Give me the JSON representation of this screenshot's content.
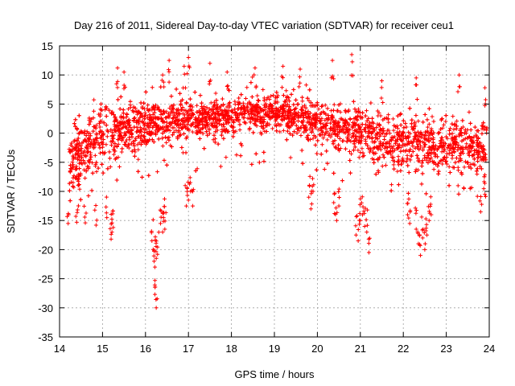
{
  "chart_data": {
    "type": "scatter",
    "title": "Day 216 of 2011, Sidereal Day-to-day VTEC variation (SDTVAR) for receiver ceu1",
    "xlabel": "GPS time / hours",
    "ylabel": "SDTVAR / TECUs",
    "xlim": [
      14,
      24
    ],
    "ylim": [
      -35,
      15
    ],
    "xticks": [
      "14",
      "15",
      "16",
      "17",
      "18",
      "19",
      "20",
      "21",
      "22",
      "23",
      "24"
    ],
    "yticks": [
      "15",
      "10",
      "5",
      "0",
      "-5",
      "-10",
      "-15",
      "-20",
      "-25",
      "-30",
      "-35"
    ],
    "grid": true,
    "marker": "+",
    "series": [
      {
        "name": "ceu1",
        "color": "#ff0000",
        "envelope": [
          {
            "x": 14.25,
            "mean": -5.0,
            "spread": 4.5
          },
          {
            "x": 14.5,
            "mean": -3.0,
            "spread": 5.0
          },
          {
            "x": 14.75,
            "mean": -2.0,
            "spread": 5.0
          },
          {
            "x": 15.0,
            "mean": -0.5,
            "spread": 5.0
          },
          {
            "x": 15.25,
            "mean": 0.5,
            "spread": 5.0
          },
          {
            "x": 15.5,
            "mean": 1.0,
            "spread": 4.5
          },
          {
            "x": 16.0,
            "mean": 1.5,
            "spread": 3.5
          },
          {
            "x": 16.5,
            "mean": 2.0,
            "spread": 3.0
          },
          {
            "x": 17.0,
            "mean": 2.5,
            "spread": 3.0
          },
          {
            "x": 17.5,
            "mean": 2.5,
            "spread": 3.0
          },
          {
            "x": 18.0,
            "mean": 3.0,
            "spread": 3.0
          },
          {
            "x": 18.5,
            "mean": 3.5,
            "spread": 3.0
          },
          {
            "x": 19.0,
            "mean": 3.5,
            "spread": 3.0
          },
          {
            "x": 19.5,
            "mean": 3.0,
            "spread": 3.0
          },
          {
            "x": 20.0,
            "mean": 2.0,
            "spread": 3.0
          },
          {
            "x": 20.5,
            "mean": 1.0,
            "spread": 3.5
          },
          {
            "x": 21.0,
            "mean": 0.0,
            "spread": 3.5
          },
          {
            "x": 21.5,
            "mean": -1.0,
            "spread": 4.0
          },
          {
            "x": 22.0,
            "mean": -1.5,
            "spread": 4.0
          },
          {
            "x": 22.5,
            "mean": -1.5,
            "spread": 4.0
          },
          {
            "x": 23.0,
            "mean": -2.0,
            "spread": 4.0
          },
          {
            "x": 23.5,
            "mean": -2.0,
            "spread": 4.0
          },
          {
            "x": 23.9,
            "mean": -2.5,
            "spread": 4.0
          }
        ],
        "spikes": [
          {
            "x": 14.2,
            "y": -15.5
          },
          {
            "x": 14.4,
            "y": -15.3
          },
          {
            "x": 14.6,
            "y": -15.4
          },
          {
            "x": 14.85,
            "y": -15.8
          },
          {
            "x": 15.1,
            "y": -14.5
          },
          {
            "x": 15.2,
            "y": -18.2
          },
          {
            "x": 15.22,
            "y": -17.0
          },
          {
            "x": 15.25,
            "y": -16.2
          },
          {
            "x": 16.15,
            "y": -18.5
          },
          {
            "x": 16.2,
            "y": -22.0
          },
          {
            "x": 16.22,
            "y": -23.0
          },
          {
            "x": 16.25,
            "y": -21.5
          },
          {
            "x": 16.28,
            "y": -20.8
          },
          {
            "x": 16.22,
            "y": -27.7
          },
          {
            "x": 16.25,
            "y": -30.0
          },
          {
            "x": 16.35,
            "y": -15.5
          },
          {
            "x": 16.4,
            "y": -17.0
          },
          {
            "x": 16.42,
            "y": -14.5
          },
          {
            "x": 16.45,
            "y": -16.5
          },
          {
            "x": 16.95,
            "y": -12.5
          },
          {
            "x": 17.0,
            "y": -11.5
          },
          {
            "x": 17.1,
            "y": -12.5
          },
          {
            "x": 17.05,
            "y": -10.0
          },
          {
            "x": 19.8,
            "y": -11.0
          },
          {
            "x": 19.85,
            "y": -13.0
          },
          {
            "x": 19.9,
            "y": -10.0
          },
          {
            "x": 20.4,
            "y": -13.8
          },
          {
            "x": 20.45,
            "y": -15.0
          },
          {
            "x": 20.5,
            "y": -12.5
          },
          {
            "x": 20.9,
            "y": -17.5
          },
          {
            "x": 20.95,
            "y": -18.5
          },
          {
            "x": 21.0,
            "y": -15.0
          },
          {
            "x": 21.05,
            "y": -14.0
          },
          {
            "x": 21.1,
            "y": -16.0
          },
          {
            "x": 21.15,
            "y": -17.0
          },
          {
            "x": 21.2,
            "y": -20.5
          },
          {
            "x": 22.1,
            "y": -14.0
          },
          {
            "x": 22.15,
            "y": -15.5
          },
          {
            "x": 22.3,
            "y": -16.5
          },
          {
            "x": 22.35,
            "y": -19.0
          },
          {
            "x": 22.4,
            "y": -21.0
          },
          {
            "x": 22.45,
            "y": -18.0
          },
          {
            "x": 22.5,
            "y": -20.0
          },
          {
            "x": 22.55,
            "y": -17.5
          },
          {
            "x": 22.6,
            "y": -15.0
          },
          {
            "x": 22.65,
            "y": -14.0
          },
          {
            "x": 23.8,
            "y": -13.5
          },
          {
            "x": 23.9,
            "y": -10.5
          },
          {
            "x": 15.35,
            "y": 11.2
          },
          {
            "x": 15.5,
            "y": 10.5
          },
          {
            "x": 16.4,
            "y": 10.0
          },
          {
            "x": 16.55,
            "y": 12.5
          },
          {
            "x": 16.9,
            "y": 11.5
          },
          {
            "x": 17.0,
            "y": 13.0
          },
          {
            "x": 17.5,
            "y": 12.0
          },
          {
            "x": 17.9,
            "y": 10.5
          },
          {
            "x": 18.55,
            "y": 11.2
          },
          {
            "x": 19.2,
            "y": 11.5
          },
          {
            "x": 19.6,
            "y": 11.0
          },
          {
            "x": 20.35,
            "y": 12.5
          },
          {
            "x": 20.8,
            "y": 13.5
          },
          {
            "x": 21.5,
            "y": 9.0
          },
          {
            "x": 22.3,
            "y": 9.5
          },
          {
            "x": 23.3,
            "y": 10.0
          },
          {
            "x": 23.9,
            "y": 7.8
          }
        ]
      }
    ]
  }
}
